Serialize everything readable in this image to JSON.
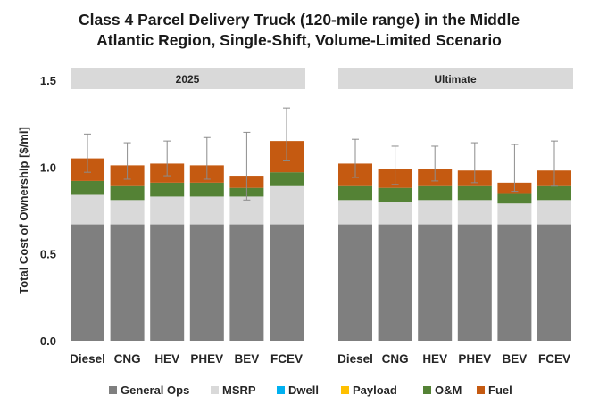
{
  "chart_data": {
    "type": "bar",
    "stacked": true,
    "title": "Class 4 Parcel Delivery Truck (120-mile range) in the Middle Atlantic Region, Single-Shift, Volume-Limited Scenario",
    "title_lines": [
      "Class 4 Parcel Delivery Truck (120-mile range) in the Middle",
      "Atlantic Region, Single-Shift, Volume-Limited Scenario"
    ],
    "ylabel": "Total Cost of Ownership [$/mi]",
    "xlabel": "",
    "ylim": [
      0,
      1.5
    ],
    "yticks": [
      "0.0",
      "0.5",
      "1.0",
      "1.5"
    ],
    "ytick_values": [
      0,
      0.5,
      1.0,
      1.5
    ],
    "categories": [
      "Diesel",
      "CNG",
      "HEV",
      "PHEV",
      "BEV",
      "FCEV"
    ],
    "components": [
      {
        "name": "General Ops",
        "color": "#7f7f7f"
      },
      {
        "name": "MSRP",
        "color": "#d9d9d9"
      },
      {
        "name": "Dwell",
        "color": "#00b0f0"
      },
      {
        "name": "Payload",
        "color": "#ffc000"
      },
      {
        "name": "O&M",
        "color": "#548235"
      },
      {
        "name": "Fuel",
        "color": "#c55a11"
      }
    ],
    "panels": [
      {
        "label": "2025",
        "series": [
          {
            "name": "General Ops",
            "values": [
              0.67,
              0.67,
              0.67,
              0.67,
              0.67,
              0.67
            ]
          },
          {
            "name": "MSRP",
            "values": [
              0.17,
              0.14,
              0.16,
              0.16,
              0.16,
              0.22
            ]
          },
          {
            "name": "Dwell",
            "values": [
              0,
              0,
              0,
              0,
              0,
              0
            ]
          },
          {
            "name": "Payload",
            "values": [
              0,
              0,
              0,
              0,
              0,
              0
            ]
          },
          {
            "name": "O&M",
            "values": [
              0.08,
              0.08,
              0.08,
              0.08,
              0.05,
              0.08
            ]
          },
          {
            "name": "Fuel",
            "values": [
              0.13,
              0.12,
              0.11,
              0.1,
              0.07,
              0.18
            ]
          }
        ],
        "error_low": [
          0.97,
          0.93,
          0.95,
          0.93,
          0.81,
          1.04
        ],
        "error_high": [
          1.19,
          1.14,
          1.15,
          1.17,
          1.2,
          1.34
        ]
      },
      {
        "label": "Ultimate",
        "series": [
          {
            "name": "General Ops",
            "values": [
              0.67,
              0.67,
              0.67,
              0.67,
              0.67,
              0.67
            ]
          },
          {
            "name": "MSRP",
            "values": [
              0.14,
              0.13,
              0.14,
              0.14,
              0.12,
              0.14
            ]
          },
          {
            "name": "Dwell",
            "values": [
              0,
              0,
              0,
              0,
              0,
              0
            ]
          },
          {
            "name": "Payload",
            "values": [
              0,
              0,
              0,
              0,
              0,
              0
            ]
          },
          {
            "name": "O&M",
            "values": [
              0.08,
              0.08,
              0.08,
              0.08,
              0.06,
              0.08
            ]
          },
          {
            "name": "Fuel",
            "values": [
              0.13,
              0.11,
              0.1,
              0.09,
              0.06,
              0.09
            ]
          }
        ],
        "error_low": [
          0.94,
          0.9,
          0.92,
          0.91,
          0.86,
          0.89
        ],
        "error_high": [
          1.16,
          1.12,
          1.12,
          1.14,
          1.13,
          1.15
        ]
      }
    ],
    "legend_position": "bottom",
    "grid": false
  }
}
